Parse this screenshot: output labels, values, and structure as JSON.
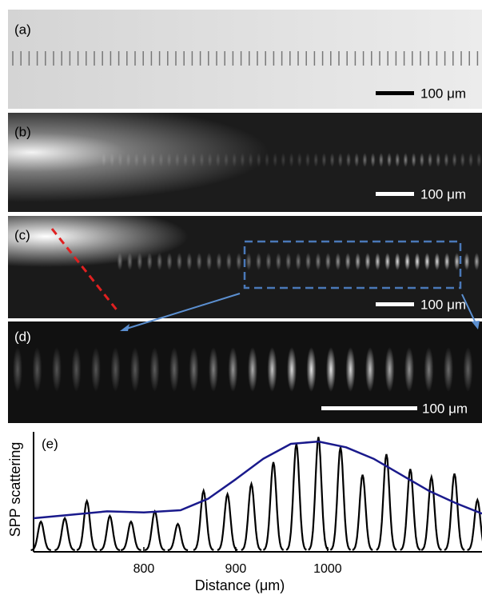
{
  "panels": [
    {
      "label": "(a)",
      "scale": "100 μm"
    },
    {
      "label": "(b)",
      "scale": "100 μm"
    },
    {
      "label": "(c)",
      "scale": "100 μm"
    },
    {
      "label": "(d)",
      "scale": "100 μm"
    }
  ],
  "chart_data": {
    "type": "line",
    "label": "(e)",
    "xlabel": "Distance (μm)",
    "ylabel": "SPP scattering",
    "xlim": [
      680,
      1168
    ],
    "xticks": [
      800,
      900,
      1000
    ],
    "ylim": [
      0,
      100
    ],
    "peaks": {
      "color": "#000000",
      "x": [
        688,
        714,
        738,
        763,
        786,
        812,
        837,
        865,
        891,
        917,
        941,
        966,
        990,
        1014,
        1038,
        1064,
        1090,
        1113,
        1138,
        1163
      ],
      "values": [
        25,
        28,
        43,
        30,
        25,
        34,
        23,
        52,
        49,
        58,
        77,
        93,
        99,
        90,
        66,
        84,
        71,
        64,
        67,
        44
      ]
    },
    "envelope": {
      "color": "#1a1a8c",
      "x": [
        680,
        720,
        760,
        800,
        840,
        870,
        900,
        930,
        960,
        990,
        1020,
        1050,
        1080,
        1110,
        1140,
        1168
      ],
      "values": [
        28,
        31,
        34,
        33,
        35,
        45,
        62,
        80,
        93,
        95,
        90,
        80,
        66,
        52,
        41,
        32
      ]
    }
  }
}
